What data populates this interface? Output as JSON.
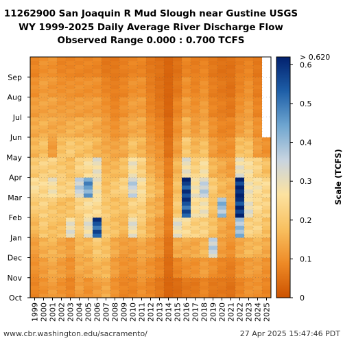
{
  "chart_data": {
    "type": "heatmap",
    "title_lines": [
      "11262900 San Joaquin R Mud Slough near Gustine USGS",
      "WY 1999-2025 Daily Average River Discharge Flow",
      "Observed Range 0.000 : 0.700 TCFS"
    ],
    "x_categories": [
      "1999",
      "2000",
      "2001",
      "2002",
      "2003",
      "2004",
      "2005",
      "2006",
      "2007",
      "2008",
      "2009",
      "2010",
      "2011",
      "2012",
      "2013",
      "2014",
      "2015",
      "2016",
      "2017",
      "2018",
      "2019",
      "2020",
      "2021",
      "2022",
      "2023",
      "2024",
      "2025"
    ],
    "y_categories": [
      "Oct",
      "Nov",
      "Dec",
      "Jan",
      "Feb",
      "Mar",
      "Apr",
      "May",
      "Jun",
      "Jul",
      "Aug",
      "Sep"
    ],
    "colorbar": {
      "label": "Scale (TCFS)",
      "min": 0,
      "max": 0.62,
      "ticks": [
        "0",
        "0.1",
        "0.2",
        "0.3",
        "0.4",
        "0.5",
        "0.6"
      ],
      "tick_values": [
        0,
        0.1,
        0.2,
        0.3,
        0.4,
        0.5,
        0.6
      ],
      "over_label": "> 0.620",
      "stops": [
        "#cc5200",
        "#ee8a26",
        "#f8c060",
        "#fce2a0",
        "#c8d4e0",
        "#6fa6d0",
        "#1e5fa8",
        "#02216e"
      ]
    },
    "grid": true,
    "monthly_values": [
      [
        0.08,
        0.1,
        0.12,
        0.16,
        0.2,
        0.25,
        0.2,
        0.16,
        0.14,
        0.12,
        0.1,
        0.08
      ],
      [
        0.1,
        0.12,
        0.15,
        0.2,
        0.22,
        0.24,
        0.22,
        0.18,
        0.15,
        0.13,
        0.12,
        0.1
      ],
      [
        0.12,
        0.14,
        0.16,
        0.18,
        0.2,
        0.28,
        0.22,
        0.12,
        0.14,
        0.13,
        0.11,
        0.1
      ],
      [
        0.1,
        0.12,
        0.14,
        0.18,
        0.18,
        0.22,
        0.2,
        0.18,
        0.14,
        0.12,
        0.1,
        0.08
      ],
      [
        0.08,
        0.1,
        0.12,
        0.3,
        0.18,
        0.22,
        0.18,
        0.2,
        0.15,
        0.12,
        0.1,
        0.08
      ],
      [
        0.12,
        0.14,
        0.16,
        0.2,
        0.22,
        0.35,
        0.22,
        0.18,
        0.15,
        0.12,
        0.1,
        0.08
      ],
      [
        0.1,
        0.14,
        0.16,
        0.3,
        0.25,
        0.45,
        0.25,
        0.18,
        0.15,
        0.12,
        0.1,
        0.08
      ],
      [
        0.12,
        0.16,
        0.2,
        0.55,
        0.25,
        0.28,
        0.3,
        0.16,
        0.14,
        0.12,
        0.1,
        0.08
      ],
      [
        0.14,
        0.16,
        0.18,
        0.2,
        0.2,
        0.18,
        0.16,
        0.14,
        0.12,
        0.1,
        0.08,
        0.06
      ],
      [
        0.1,
        0.12,
        0.14,
        0.18,
        0.18,
        0.2,
        0.16,
        0.13,
        0.1,
        0.08,
        0.07,
        0.06
      ],
      [
        0.08,
        0.1,
        0.12,
        0.16,
        0.18,
        0.22,
        0.18,
        0.14,
        0.12,
        0.1,
        0.08,
        0.07
      ],
      [
        0.08,
        0.1,
        0.12,
        0.3,
        0.22,
        0.35,
        0.28,
        0.18,
        0.14,
        0.12,
        0.1,
        0.08
      ],
      [
        0.1,
        0.12,
        0.14,
        0.2,
        0.22,
        0.26,
        0.22,
        0.16,
        0.14,
        0.12,
        0.1,
        0.08
      ],
      [
        0.08,
        0.1,
        0.12,
        0.15,
        0.16,
        0.18,
        0.15,
        0.12,
        0.1,
        0.08,
        0.07,
        0.06
      ],
      [
        0.06,
        0.08,
        0.1,
        0.12,
        0.14,
        0.15,
        0.12,
        0.1,
        0.08,
        0.06,
        0.05,
        0.05
      ],
      [
        0.03,
        0.04,
        0.05,
        0.07,
        0.08,
        0.08,
        0.07,
        0.05,
        0.04,
        0.03,
        0.03,
        0.03
      ],
      [
        0.04,
        0.08,
        0.14,
        0.3,
        0.2,
        0.18,
        0.16,
        0.12,
        0.1,
        0.08,
        0.06,
        0.05
      ],
      [
        0.06,
        0.1,
        0.14,
        0.25,
        0.55,
        0.58,
        0.3,
        0.2,
        0.15,
        0.12,
        0.1,
        0.08
      ],
      [
        0.06,
        0.1,
        0.14,
        0.22,
        0.26,
        0.28,
        0.22,
        0.16,
        0.12,
        0.1,
        0.08,
        0.07
      ],
      [
        0.08,
        0.12,
        0.16,
        0.22,
        0.28,
        0.35,
        0.26,
        0.18,
        0.14,
        0.12,
        0.1,
        0.08
      ],
      [
        0.06,
        0.1,
        0.35,
        0.18,
        0.18,
        0.2,
        0.16,
        0.12,
        0.1,
        0.08,
        0.07,
        0.06
      ],
      [
        0.06,
        0.08,
        0.12,
        0.14,
        0.4,
        0.16,
        0.14,
        0.1,
        0.08,
        0.07,
        0.06,
        0.05
      ],
      [
        0.05,
        0.07,
        0.1,
        0.12,
        0.14,
        0.15,
        0.12,
        0.1,
        0.08,
        0.06,
        0.05,
        0.05
      ],
      [
        0.08,
        0.1,
        0.14,
        0.4,
        0.6,
        0.62,
        0.3,
        0.18,
        0.12,
        0.1,
        0.08,
        0.07
      ],
      [
        0.1,
        0.12,
        0.16,
        0.22,
        0.3,
        0.28,
        0.26,
        0.18,
        0.14,
        0.12,
        0.1,
        0.08
      ],
      [
        0.1,
        0.12,
        0.16,
        0.22,
        0.24,
        0.26,
        0.22,
        0.12,
        0.1,
        0.08,
        0.07,
        0.06
      ],
      [
        0.08,
        0.1,
        0.14,
        0.18,
        0.22,
        0.24,
        0.18,
        0.1,
        null,
        null,
        null,
        null
      ]
    ]
  },
  "footer": {
    "url": "www.cbr.washington.edu/sacramento/",
    "timestamp": "27 Apr 2025 15:47:46 PDT"
  }
}
